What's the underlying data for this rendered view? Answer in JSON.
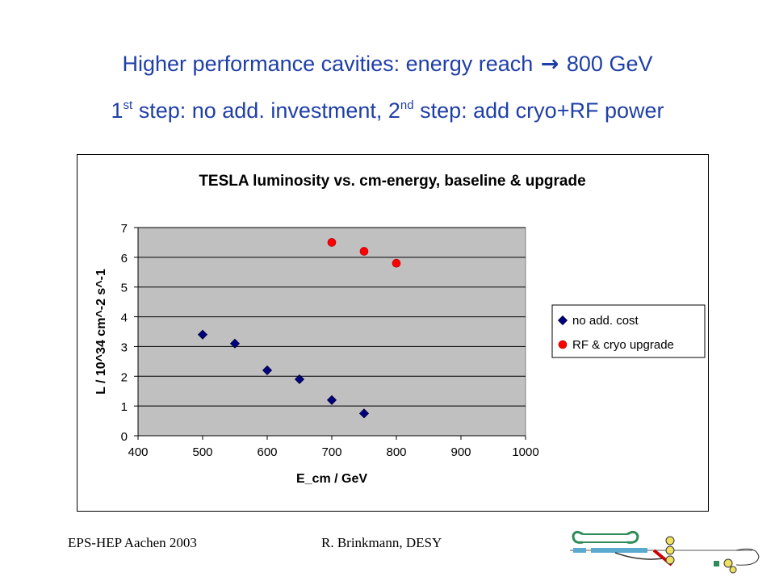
{
  "slide": {
    "title_line1_pre": "Higher performance cavities: energy reach ",
    "title_arrow": "→",
    "title_line1_post": " 800 GeV",
    "title_line2_a": "1",
    "title_line2_sup1": "st",
    "title_line2_b": " step: no add. investment, 2",
    "title_line2_sup2": "nd",
    "title_line2_c": " step: add cryo+RF power",
    "footer_left": "EPS-HEP Aachen 2003",
    "footer_right": "R. Brinkmann, DESY",
    "title_color": "#1f3fa8"
  },
  "chart_data": {
    "type": "scatter",
    "title": "TESLA luminosity vs. cm-energy, baseline & upgrade",
    "xlabel": "E_cm / GeV",
    "ylabel": "L / 10^34 cm^-2 s^-1",
    "xlim": [
      400,
      1000
    ],
    "ylim": [
      0,
      7
    ],
    "xticks": [
      400,
      500,
      600,
      700,
      800,
      900,
      1000
    ],
    "yticks": [
      0,
      1,
      2,
      3,
      4,
      5,
      6,
      7
    ],
    "grid": "horizontal",
    "plot_background": "#c0c0c0",
    "legend_position": "right",
    "series": [
      {
        "name": "no add. cost",
        "marker": "diamond",
        "color": "#000080",
        "x": [
          500,
          550,
          600,
          650,
          700,
          750
        ],
        "y": [
          3.4,
          3.1,
          2.2,
          1.9,
          1.2,
          0.75
        ]
      },
      {
        "name": "RF & cryo upgrade",
        "marker": "circle",
        "color": "#ff0000",
        "x": [
          700,
          750,
          800
        ],
        "y": [
          6.5,
          6.2,
          5.8
        ]
      }
    ]
  }
}
